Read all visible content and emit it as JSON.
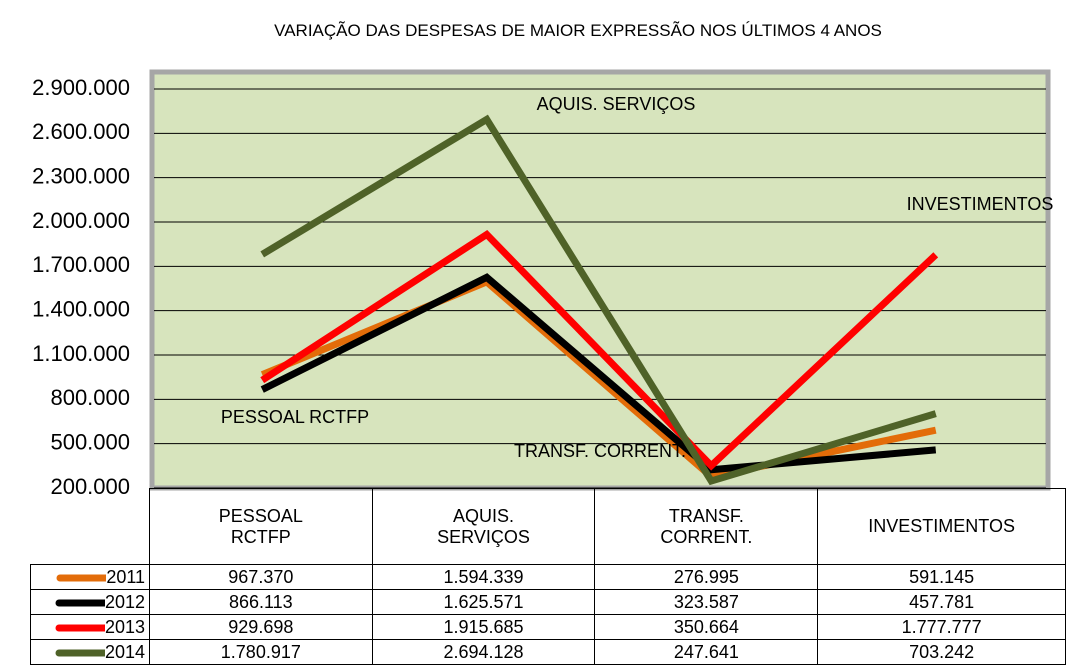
{
  "chart_data": {
    "type": "line",
    "title": "VARIAÇÃO DAS DESPESAS DE MAIOR EXPRESSÃO NOS ÚLTIMOS 4 ANOS",
    "categories": [
      "PESSOAL RCTFP",
      "AQUIS. SERVIÇOS",
      "TRANSF. CORRENT.",
      "INVESTIMENTOS"
    ],
    "annotations": [
      "AQUIS. SERVIÇOS",
      "INVESTIMENTOS",
      "PESSOAL RCTFP",
      "TRANSF. CORRENT."
    ],
    "series": [
      {
        "name": "2011",
        "color": "#e36c09",
        "values": [
          967370,
          1594339,
          276995,
          591145
        ],
        "value_labels": [
          "967.370",
          "1.594.339",
          "276.995",
          "591.145"
        ]
      },
      {
        "name": "2012",
        "color": "#000000",
        "values": [
          866113,
          1625571,
          323587,
          457781
        ],
        "value_labels": [
          "866.113",
          "1.625.571",
          "323.587",
          "457.781"
        ]
      },
      {
        "name": "2013",
        "color": "#ff0000",
        "values": [
          929698,
          1915685,
          350664,
          1777777
        ],
        "value_labels": [
          "929.698",
          "1.915.685",
          "350.664",
          "1.777.777"
        ]
      },
      {
        "name": "2014",
        "color": "#4f6228",
        "values": [
          1780917,
          2694128,
          247641,
          703242
        ],
        "value_labels": [
          "1.780.917",
          "2.694.128",
          "247.641",
          "703.242"
        ]
      }
    ],
    "ylim": [
      200000,
      2900000
    ],
    "yticks": [
      {
        "value": 200000,
        "label": "200.000"
      },
      {
        "value": 500000,
        "label": "500.000"
      },
      {
        "value": 800000,
        "label": "800.000"
      },
      {
        "value": 1100000,
        "label": "1.100.000"
      },
      {
        "value": 1400000,
        "label": "1.400.000"
      },
      {
        "value": 1700000,
        "label": "1.700.000"
      },
      {
        "value": 2000000,
        "label": "2.000.000"
      },
      {
        "value": 2300000,
        "label": "2.300.000"
      },
      {
        "value": 2600000,
        "label": "2.600.000"
      },
      {
        "value": 2900000,
        "label": "2.900.000"
      }
    ],
    "grid": true
  }
}
